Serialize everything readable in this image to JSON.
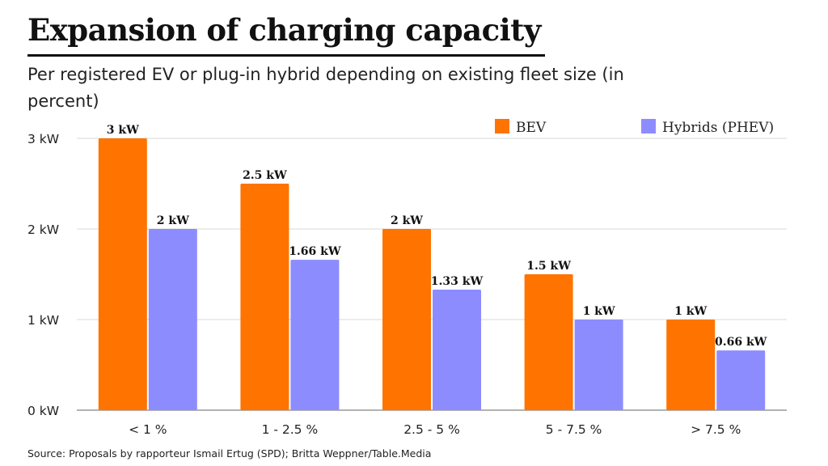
{
  "title": "Expansion of charging capacity",
  "subtitle": "Per registered EV or plug-in hybrid depending on existing fleet size (in percent)",
  "source": "Source: Proposals by rapporteur Ismail Ertug (SPD); Britta Weppner/Table.Media",
  "colors": {
    "bev": "#ff7300",
    "phev": "#8d8cff",
    "grid": "#d8d8d8",
    "axis": "#9a9a9a"
  },
  "chart_data": {
    "type": "bar",
    "categories": [
      "< 1 %",
      "1 - 2.5 %",
      "2.5 - 5 %",
      "5 - 7.5 %",
      "> 7.5 %"
    ],
    "series": [
      {
        "name": "BEV",
        "values": [
          3,
          2.5,
          2,
          1.5,
          1
        ],
        "labels": [
          "3 kW",
          "2.5 kW",
          "2 kW",
          "1.5 kW",
          "1 kW"
        ]
      },
      {
        "name": "Hybrids (PHEV)",
        "values": [
          2,
          1.66,
          1.33,
          1,
          0.66
        ],
        "labels": [
          "2 kW",
          "1.66 kW",
          "1.33 kW",
          "1 kW",
          "0.66 kW"
        ]
      }
    ],
    "ylim": [
      0,
      3
    ],
    "yticks": [
      0,
      1,
      2,
      3
    ],
    "ytick_labels": [
      "0 kW",
      "1 kW",
      "2 kW",
      "3 kW"
    ],
    "grid": true,
    "legend": "top-right"
  }
}
